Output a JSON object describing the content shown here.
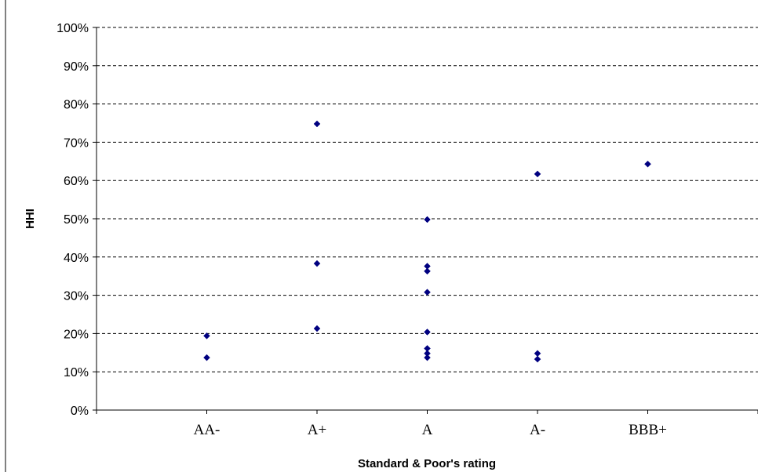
{
  "chart_data": {
    "type": "scatter",
    "title": "",
    "xlabel": "Standard & Poor's rating",
    "ylabel": "HHI",
    "categories": [
      "AA-",
      "A+",
      "A",
      "A-",
      "BBB+"
    ],
    "ylim": [
      0,
      1
    ],
    "yticks": [
      "0%",
      "10%",
      "20%",
      "30%",
      "40%",
      "50%",
      "60%",
      "70%",
      "80%",
      "90%",
      "100%"
    ],
    "grid": true,
    "marker_color": "#000080",
    "points": [
      {
        "category": "AA-",
        "y": 0.194
      },
      {
        "category": "AA-",
        "y": 0.137
      },
      {
        "category": "A+",
        "y": 0.748
      },
      {
        "category": "A+",
        "y": 0.383
      },
      {
        "category": "A+",
        "y": 0.213
      },
      {
        "category": "A",
        "y": 0.498
      },
      {
        "category": "A",
        "y": 0.376
      },
      {
        "category": "A",
        "y": 0.363
      },
      {
        "category": "A",
        "y": 0.308
      },
      {
        "category": "A",
        "y": 0.204
      },
      {
        "category": "A",
        "y": 0.161
      },
      {
        "category": "A",
        "y": 0.148
      },
      {
        "category": "A",
        "y": 0.137
      },
      {
        "category": "A-",
        "y": 0.617
      },
      {
        "category": "A-",
        "y": 0.148
      },
      {
        "category": "A-",
        "y": 0.133
      },
      {
        "category": "BBB+",
        "y": 0.643
      }
    ]
  }
}
